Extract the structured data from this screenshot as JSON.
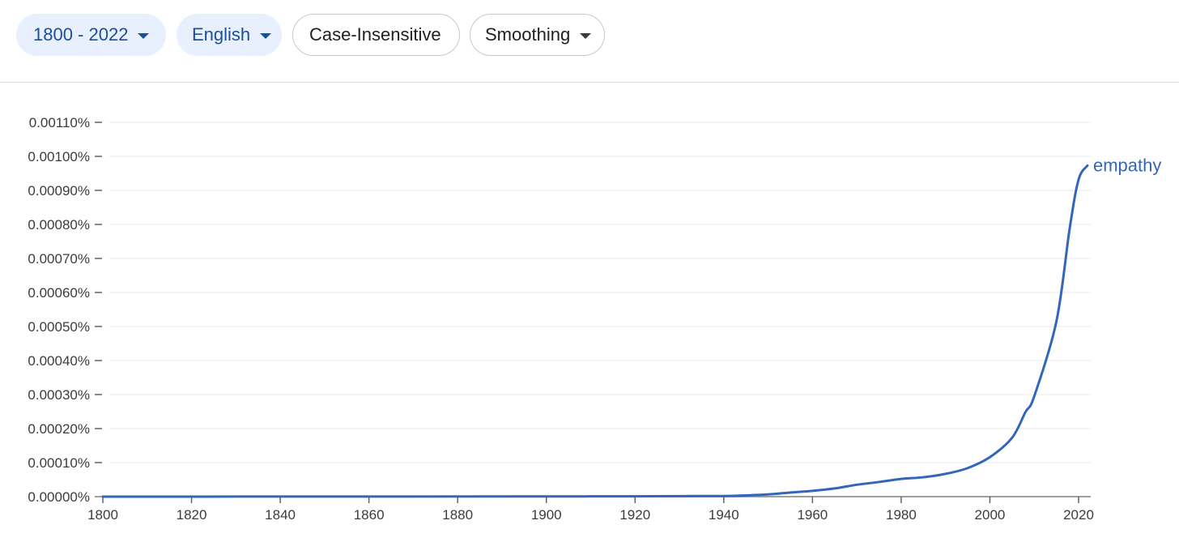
{
  "toolbar": {
    "range_label": "1800 - 2022",
    "language_label": "English",
    "case_label": "Case-Insensitive",
    "smoothing_label": "Smoothing"
  },
  "colors": {
    "series": "#3366bb",
    "active_chip_bg": "#e8f0fe",
    "active_chip_text": "#1a4fa0",
    "grid": "#e8e8e8",
    "axis": "#9e9e9e"
  },
  "chart_data": {
    "type": "line",
    "title": "",
    "xlabel": "",
    "ylabel": "",
    "xlim": [
      1800,
      2022
    ],
    "ylim": [
      0,
      0.0011
    ],
    "grid": true,
    "legend": "inline-end",
    "x_ticks": [
      1800,
      1820,
      1840,
      1860,
      1880,
      1900,
      1920,
      1940,
      1960,
      1980,
      2000,
      2020
    ],
    "x_tick_labels": [
      "1800",
      "1820",
      "1840",
      "1860",
      "1880",
      "1900",
      "1920",
      "1940",
      "1960",
      "1980",
      "2000",
      "2020"
    ],
    "y_ticks": [
      0,
      0.0001,
      0.0002,
      0.0003,
      0.0004,
      0.0005,
      0.0006,
      0.0007,
      0.0008,
      0.0009,
      0.001,
      0.0011
    ],
    "y_tick_labels": [
      "0.00000%",
      "0.00010%",
      "0.00020%",
      "0.00030%",
      "0.00040%",
      "0.00050%",
      "0.00060%",
      "0.00070%",
      "0.00080%",
      "0.00090%",
      "0.00100%",
      "0.00110%"
    ],
    "series": [
      {
        "name": "empathy",
        "color": "#3366bb",
        "x": [
          1800,
          1850,
          1900,
          1910,
          1920,
          1930,
          1935,
          1940,
          1945,
          1950,
          1955,
          1960,
          1965,
          1970,
          1975,
          1980,
          1985,
          1990,
          1995,
          2000,
          2005,
          2008,
          2010,
          2015,
          2018,
          2020,
          2022
        ],
        "y": [
          0,
          3e-07,
          5e-07,
          8e-07,
          1e-06,
          1.5e-06,
          1.8e-06,
          1.8e-06,
          3.5e-06,
          6.5e-06,
          1.2e-05,
          1.7e-05,
          2.4e-05,
          3.5e-05,
          4.3e-05,
          5.2e-05,
          5.7e-05,
          6.7e-05,
          8.4e-05,
          0.000116,
          0.000173,
          0.000248,
          0.000295,
          0.000515,
          0.000789,
          0.000932,
          0.000973
        ]
      }
    ]
  }
}
